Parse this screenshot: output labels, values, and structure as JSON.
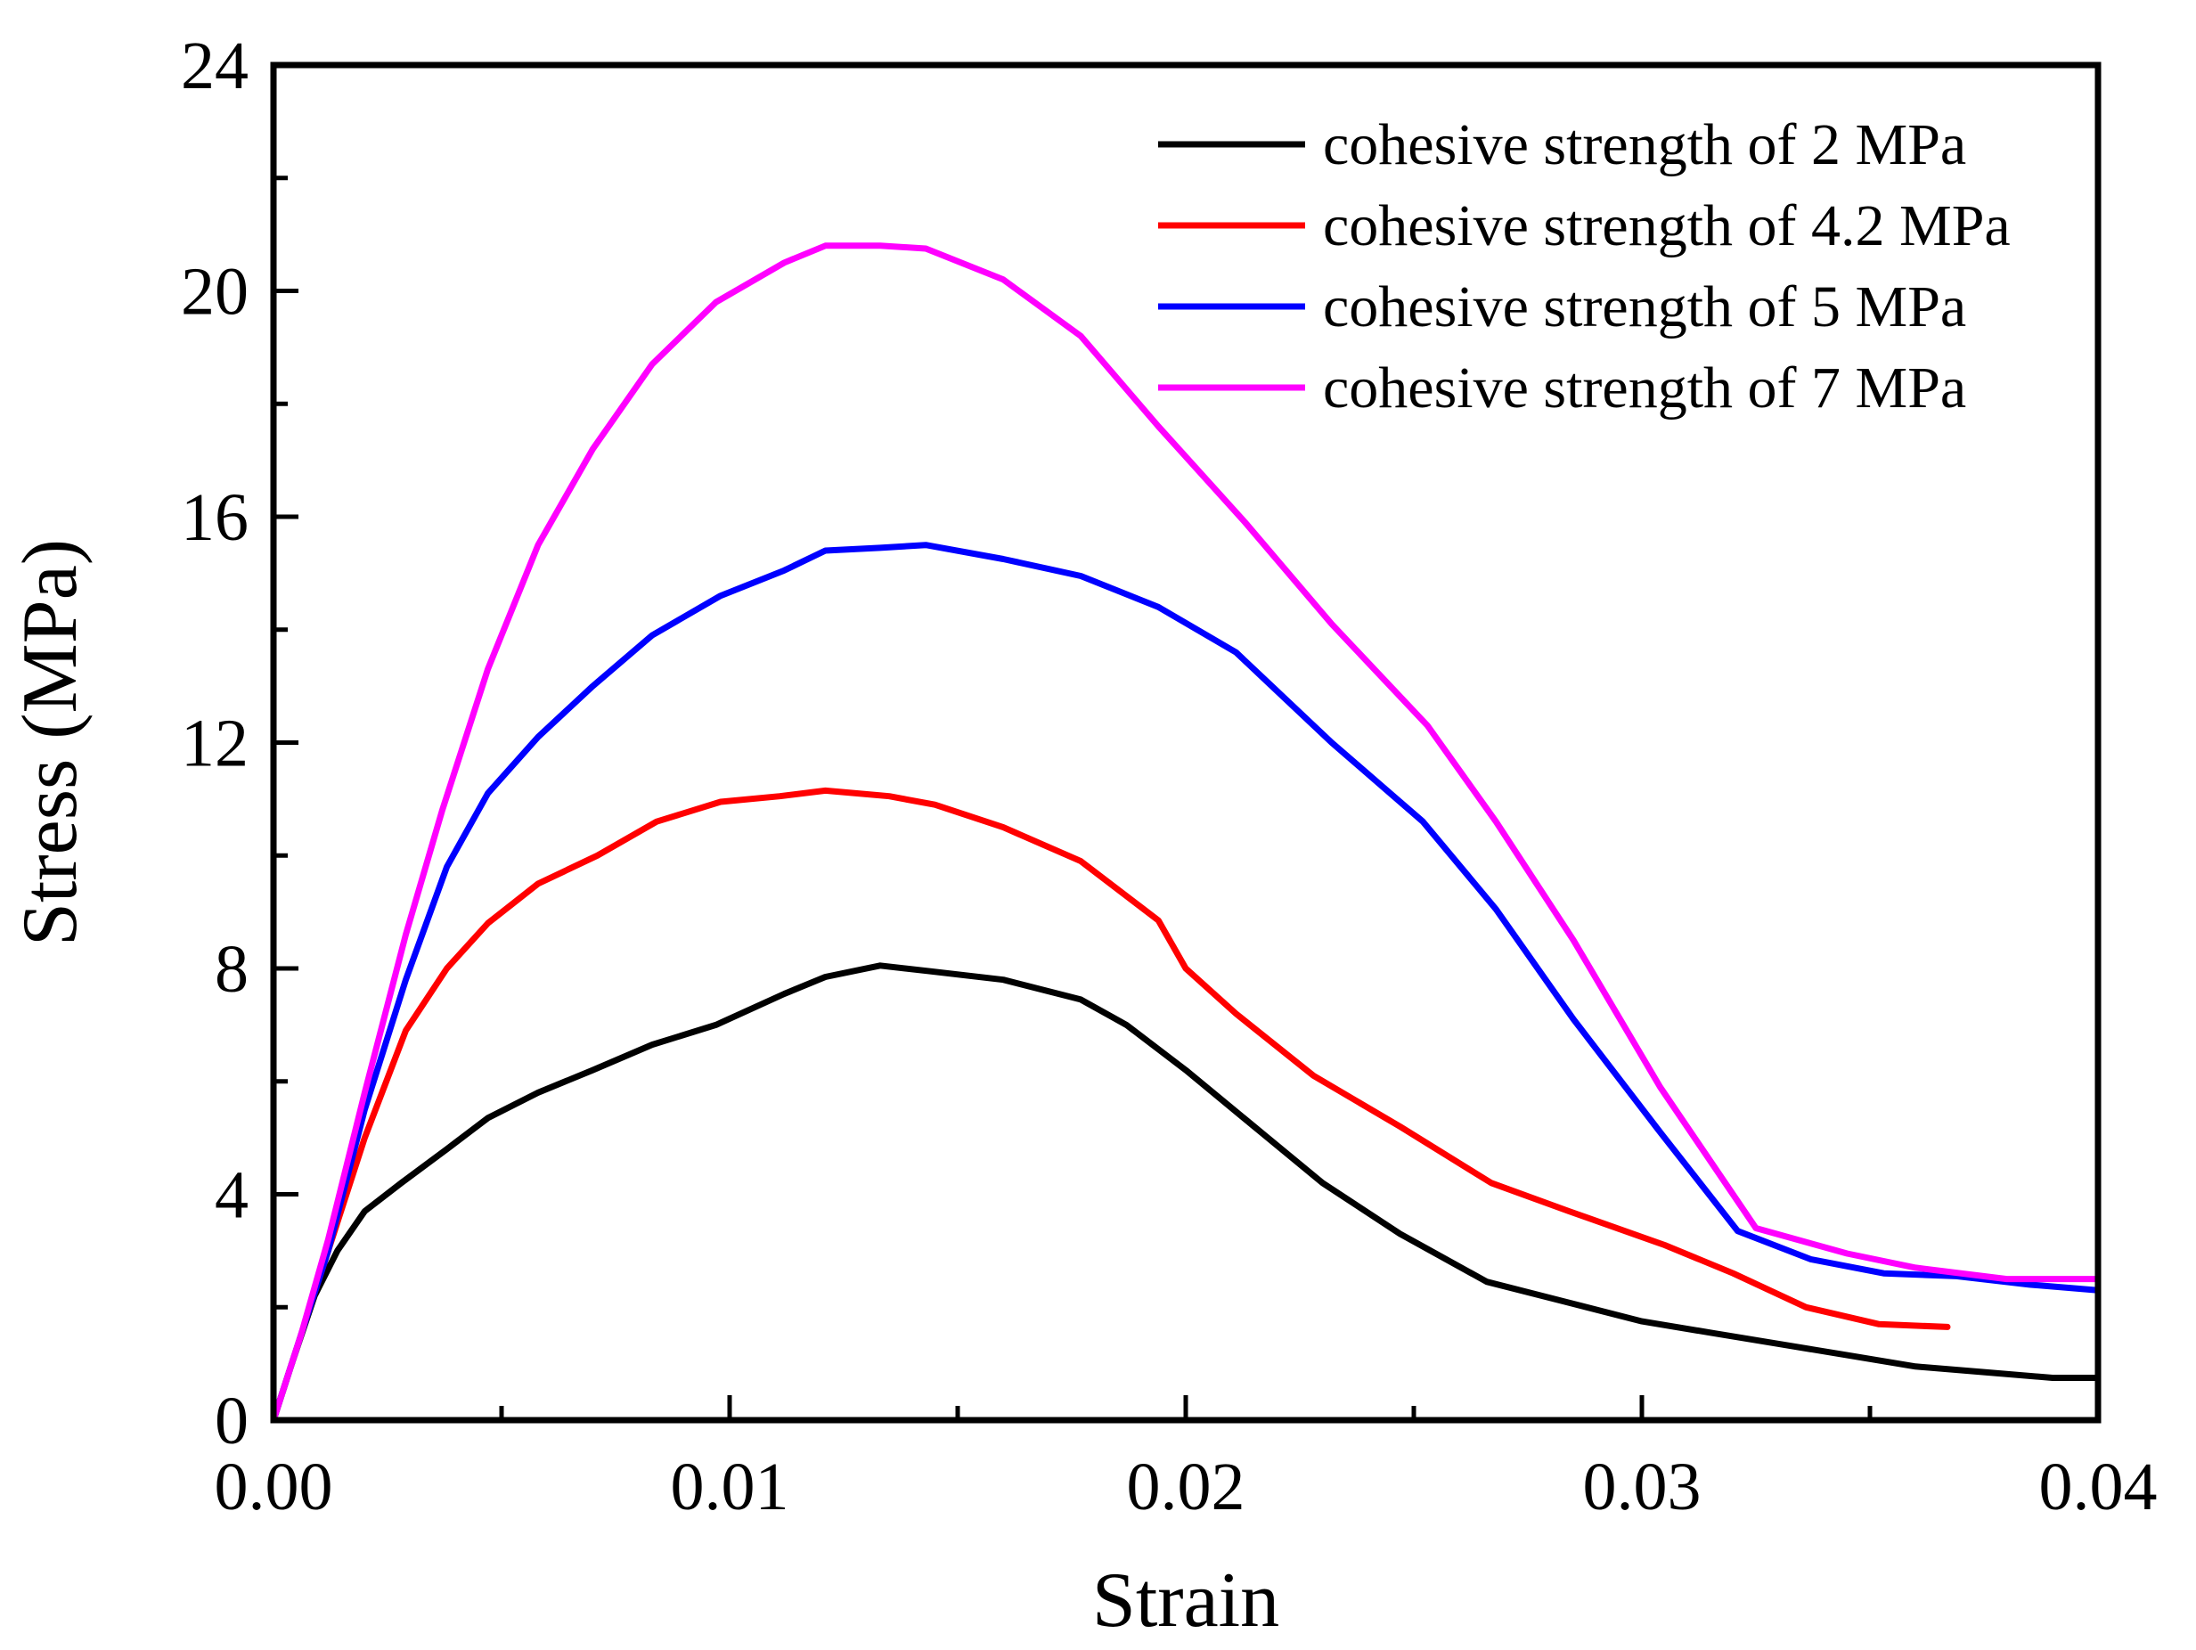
{
  "chart_data": {
    "type": "line",
    "title": "",
    "xlabel": "Strain",
    "ylabel": "Stress (MPa)",
    "xlim": [
      0.0,
      0.04
    ],
    "ylim": [
      0,
      24
    ],
    "x_ticks": [
      0.0,
      0.01,
      0.02,
      0.03,
      0.04
    ],
    "x_tick_labels": [
      "0.00",
      "0.01",
      "0.02",
      "0.03",
      "0.04"
    ],
    "y_ticks": [
      0,
      4,
      8,
      12,
      16,
      20,
      24
    ],
    "y_tick_labels": [
      "0",
      "4",
      "8",
      "12",
      "16",
      "20",
      "24"
    ],
    "grid": false,
    "legend_position": "top-right",
    "series": [
      {
        "name": "cohesive strength of 2 MPa",
        "color": "#000000",
        "x": [
          0,
          0.0004,
          0.0009,
          0.0014,
          0.002,
          0.0028,
          0.0038,
          0.0047,
          0.0058,
          0.007,
          0.0083,
          0.0097,
          0.0112,
          0.0121,
          0.0133,
          0.0144,
          0.016,
          0.0177,
          0.0187,
          0.02,
          0.0215,
          0.023,
          0.0247,
          0.0266,
          0.0283,
          0.03,
          0.0315,
          0.033,
          0.0345,
          0.036,
          0.0375,
          0.039,
          0.04
        ],
        "values": [
          0,
          1.0,
          2.2,
          3.0,
          3.7,
          4.2,
          4.8,
          5.35,
          5.8,
          6.2,
          6.65,
          7.0,
          7.55,
          7.85,
          8.05,
          7.95,
          7.8,
          7.45,
          7.0,
          6.2,
          5.2,
          4.2,
          3.3,
          2.45,
          2.1,
          1.75,
          1.55,
          1.35,
          1.15,
          0.95,
          0.85,
          0.75,
          0.75
        ]
      },
      {
        "name": "cohesive strength of 4.2 MPa",
        "color": "#ff0000",
        "x": [
          0,
          0.0006,
          0.0012,
          0.002,
          0.0029,
          0.0038,
          0.0047,
          0.0058,
          0.0071,
          0.0084,
          0.0098,
          0.0111,
          0.0121,
          0.0135,
          0.0145,
          0.016,
          0.0177,
          0.0194,
          0.02,
          0.0211,
          0.0228,
          0.0247,
          0.0267,
          0.0284,
          0.0305,
          0.032,
          0.0336,
          0.0352,
          0.0367
        ],
        "values": [
          0,
          1.5,
          3.0,
          5.0,
          6.9,
          8.0,
          8.8,
          9.5,
          10.0,
          10.6,
          10.95,
          11.05,
          11.15,
          11.05,
          10.9,
          10.5,
          9.9,
          8.85,
          8.0,
          7.2,
          6.1,
          5.2,
          4.2,
          3.7,
          3.1,
          2.6,
          2.0,
          1.7,
          1.65
        ]
      },
      {
        "name": "cohesive strength of 5 MPa",
        "color": "#0000ff",
        "x": [
          0,
          0.0006,
          0.0012,
          0.002,
          0.0029,
          0.0038,
          0.0047,
          0.0058,
          0.007,
          0.0083,
          0.0098,
          0.0112,
          0.0121,
          0.0133,
          0.0143,
          0.016,
          0.0177,
          0.0194,
          0.0211,
          0.0232,
          0.0252,
          0.0268,
          0.0285,
          0.0304,
          0.0321,
          0.0337,
          0.0353,
          0.0369,
          0.0385,
          0.04
        ],
        "values": [
          0,
          1.5,
          3.0,
          5.5,
          7.8,
          9.8,
          11.1,
          12.1,
          13.0,
          13.9,
          14.6,
          15.05,
          15.4,
          15.45,
          15.5,
          15.25,
          14.95,
          14.4,
          13.6,
          12.0,
          10.6,
          9.05,
          7.1,
          5.1,
          3.35,
          2.85,
          2.6,
          2.55,
          2.4,
          2.3
        ]
      },
      {
        "name": "cohesive strength of 7 MPa",
        "color": "#ff00ff",
        "x": [
          0,
          0.0006,
          0.0012,
          0.002,
          0.0029,
          0.0037,
          0.0047,
          0.0058,
          0.007,
          0.0083,
          0.0097,
          0.0112,
          0.0121,
          0.0133,
          0.0143,
          0.016,
          0.0177,
          0.0194,
          0.0213,
          0.0232,
          0.0253,
          0.0268,
          0.0285,
          0.0304,
          0.0325,
          0.0345,
          0.036,
          0.038,
          0.04
        ],
        "values": [
          0,
          1.5,
          3.2,
          5.8,
          8.6,
          10.8,
          13.3,
          15.5,
          17.2,
          18.7,
          19.8,
          20.5,
          20.8,
          20.8,
          20.75,
          20.2,
          19.2,
          17.6,
          15.9,
          14.1,
          12.3,
          10.6,
          8.5,
          5.9,
          3.4,
          2.95,
          2.7,
          2.5,
          2.5
        ]
      }
    ]
  }
}
